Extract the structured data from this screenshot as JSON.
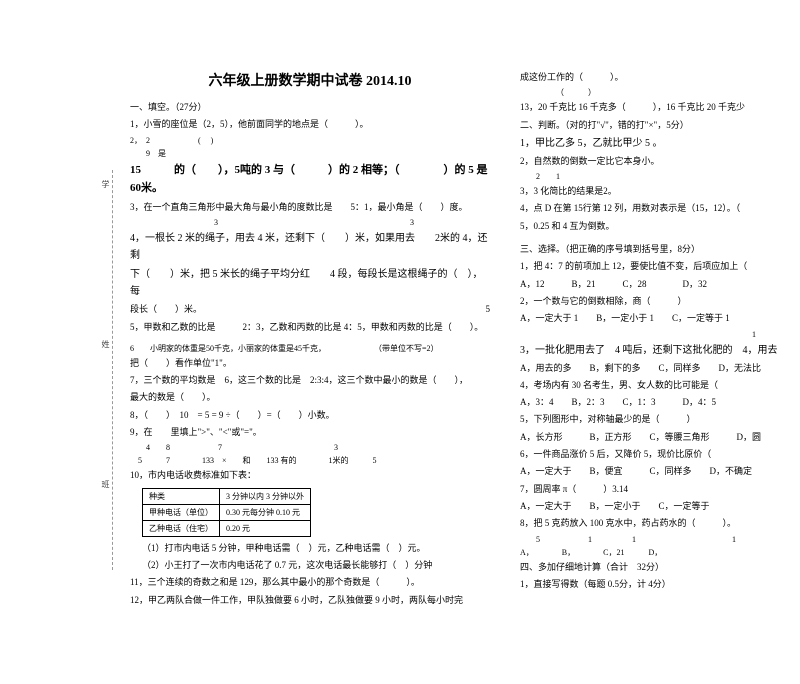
{
  "title": "六年级上册数学期中试卷 2014.10",
  "side": {
    "a": "学",
    "b": "姓",
    "c": "班"
  },
  "left": {
    "sec1_h": "一、填空。（27分）",
    "q1": "1，小雪的座位是（2，5），他前面同学的地点是（　　　）。",
    "q2a": "2，　2　　　　　　( 　)",
    "q2b": "　　9　是",
    "q2c": "15　　　的（　　），5吨的 3 与（　　　）的 2 相等；（　　　　）的 5 是60米。",
    "q3": "3，在一个直角三角形中最大角与最小角的度数比是　　5：1，最小角是（　　）度。",
    "q4a": "4，一根长 2 米的绳子，用去 4 米，还剩下（　　）米，如果用去　　2米的 4，还剩",
    "q4b": "下（　　）米，把 5 米长的绳子平均分红　　4 段，每段长是这根绳子的（　），每",
    "q4c": "段长（　　）米。　　　　　　　　　　　　　　　　　　　　　　　　　　　　　　　　5",
    "q5": "5，甲数和乙数的比是　　　2：3，乙数和丙数的比是 4：5，甲数和丙数的比是（　　）。",
    "q6": "6　　小明家的体重是50千克，小丽家的体重是45千克，　　　　　　　（带单位不写=2）",
    "q6b": "把（　　）看作单位\"1\"。",
    "q7": "7，三个数的平均数是　6，这三个数的比是　2:3:4，这三个数中最小的数是（　　），",
    "q7b": "最大的数是（　　）。",
    "q8": "8，（　　）　10　= 5 = 9 ÷（　　）=（　　）小数。",
    "q9": "9，在　　里填上\">\"、\"<\"或\"=\"。",
    "q9b": "　　4　　8　　　　　　7　　　　　　　　　　　　　　3",
    "q9c": "　5　　　7　　　　133　×　　和　　133 有的　　　　1米的　　　5",
    "q10": "10，市内电话收费标准如下表：",
    "t_h1": "种类",
    "t_h2": "3 分钟以内 3 分钟以外",
    "t_r1a": "甲种电话（单位）",
    "t_r1b": "0.30 元每分钟 0.10 元",
    "t_r2a": "乙种电话（住宅）",
    "t_r2b": "0.20 元",
    "q10_1": "（1）打市内电话 5 分钟，甲种电话需（　）元，乙种电话需（　）元。",
    "q10_2": "（2）小王打了一次市内电话花了 0.7 元，这次电话最长能够打（　）分钟",
    "q11": "11，三个连续的奇数之和是 129，那么其中最小的那个奇数是（　　　）。",
    "q12": "12，甲乙两队合做一件工作，甲队独做要 6 小时，乙队独做要 9 小时，两队每小时完"
  },
  "right": {
    "r_top": "成这份工作的（　　　）。",
    "r_top2": "　　　　　（　　　）",
    "q13": "13，20 千克比 16 千克多（　　　），16 千克比 20 千克少",
    "sec2_h": "二、判断。（对的打\"√\"，错的打\"×\"，5分）",
    "j1": "1，甲比乙多 5，乙就比甲少 5 。",
    "j2": "2，自然数的倒数一定比它本身小。",
    "j2b": "　　2　　1",
    "j3": "3，3 化简比的结果是2。",
    "j4": "4，点 D 在第 15行第 12 列，用数对表示是（15，12）。（　",
    "j5": "5，0.25 和 4 互为倒数。",
    "sec3_h": "三、选择。（把正确的序号填到括号里，8分）",
    "c1": "1，把 4：7 的前项加上 12，要使比值不变，后项应加上（",
    "c1o": "A，12　　　B，21　　　C，28　　　　D，32",
    "c2": "2，一个数与它的倒数相除，商（　　　）",
    "c2o": "A，一定大于 1　　B，一定小于 1　　C，一定等于 1",
    "c3a": "　　　　　　　　　　　　　　　　　　　　　　　　　　　　　1",
    "c3": "3，一批化肥用去了　4 吨后，还剩下这批化肥的　4，用去",
    "c3o": "A，用去的多　　B，剩下的多　　C，同样多　　D，无法比",
    "c4": "4，考场内有 30 名考生，男、女人数的比可能是（　　",
    "c4o": "A，3：4　　B，2：3　　C，1：3　　　D，4：5",
    "c5": "5，下列图形中，对称轴最少的是（　　　）",
    "c5o": "A，长方形　　　B，正方形　　C，等腰三角形　　　D，圆",
    "c6": "6，一件商品涨价 5 后，又降价 5，现价比原价（　　　",
    "c6o": "A，一定大于　　B，便宜　　　C，同样多　　D，不确定",
    "c7": "7，圆周率 π（　　　）3.14",
    "c7o": "A，一定大于　　B，一定小于　　C，一定等于",
    "c8": "8，把 5 克药放入 100 克水中，药占药水的（　　　）。",
    "c8o": "　　5　　　　　　1　　　　　1　　　　　　　　　　　　1",
    "c8o2": "A，　　　　B，　　　　C，21　　　D，　　",
    "sec4_h": "四、多加仔细地计算（合计　32分）",
    "q4_1": "1，直接写得数（每题 0.5分，计 4分）"
  }
}
